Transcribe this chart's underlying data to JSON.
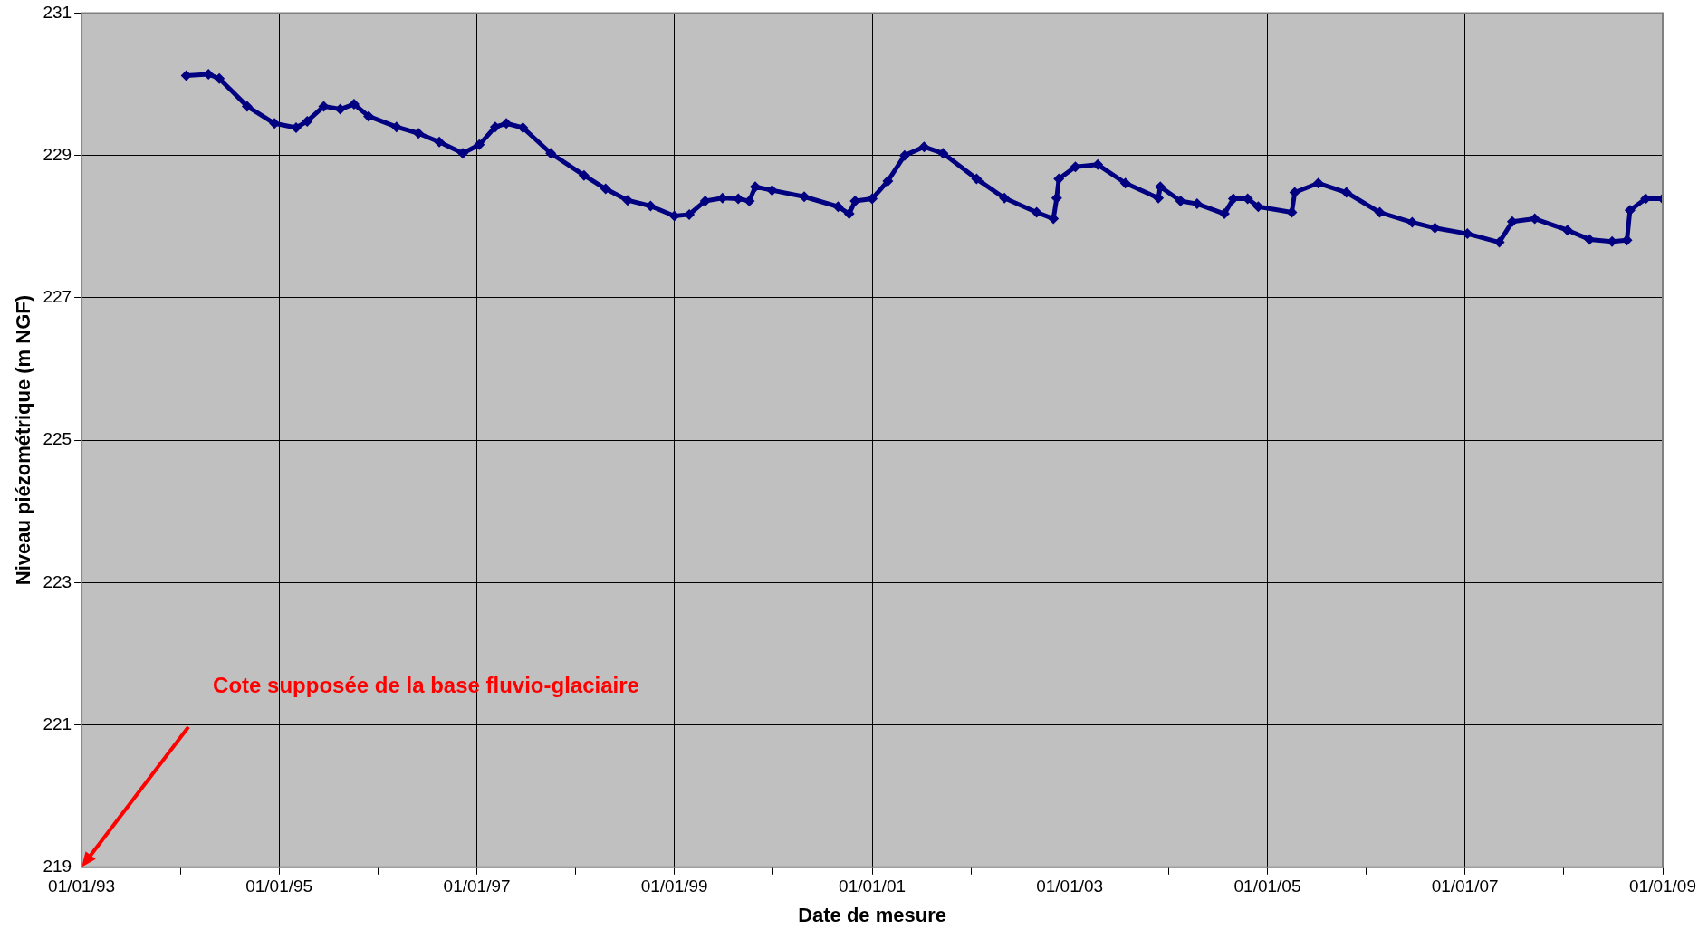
{
  "chart_data": {
    "type": "line",
    "xlabel": "Date de mesure",
    "ylabel": "Niveau piézométrique (m NGF)",
    "x": [
      "1994-01-23",
      "1994-04-15",
      "1994-05-25",
      "1994-09-05",
      "1994-12-15",
      "1995-03-05",
      "1995-04-15",
      "1995-06-15",
      "1995-08-15",
      "1995-10-05",
      "1995-11-28",
      "1996-03-10",
      "1996-05-30",
      "1996-08-15",
      "1996-11-10",
      "1997-01-10",
      "1997-03-10",
      "1997-04-20",
      "1997-06-20",
      "1997-10-01",
      "1998-02-01",
      "1998-04-22",
      "1998-07-12",
      "1998-10-05",
      "1999-01-01",
      "1999-02-25",
      "1999-04-25",
      "1999-06-28",
      "1999-08-25",
      "1999-10-05",
      "1999-10-27",
      "1999-12-28",
      "2000-04-25",
      "2000-08-28",
      "2000-10-08",
      "2000-10-30",
      "2001-01-01",
      "2001-02-28",
      "2001-05-01",
      "2001-07-12",
      "2001-09-20",
      "2002-01-22",
      "2002-05-05",
      "2002-09-01",
      "2002-11-02",
      "2002-11-14",
      "2002-11-22",
      "2003-01-22",
      "2003-04-15",
      "2003-07-26",
      "2003-11-25",
      "2003-12-02",
      "2004-02-15",
      "2004-04-16",
      "2004-07-26",
      "2004-08-28",
      "2004-10-20",
      "2004-11-28",
      "2005-04-01",
      "2005-04-12",
      "2005-07-08",
      "2005-10-20",
      "2006-02-20",
      "2006-06-20",
      "2006-09-12",
      "2007-01-10",
      "2007-05-08",
      "2007-06-25",
      "2007-09-16",
      "2008-01-15",
      "2008-04-05",
      "2008-06-28",
      "2008-08-22",
      "2008-09-02",
      "2008-10-30",
      "2009-01-01"
    ],
    "values": [
      230.12,
      230.14,
      230.08,
      229.69,
      229.45,
      229.39,
      229.48,
      229.69,
      229.65,
      229.72,
      229.55,
      229.4,
      229.31,
      229.19,
      229.03,
      229.15,
      229.4,
      229.45,
      229.39,
      229.03,
      228.72,
      228.53,
      228.37,
      228.29,
      228.15,
      228.17,
      228.36,
      228.4,
      228.39,
      228.36,
      228.56,
      228.51,
      228.42,
      228.28,
      228.18,
      228.36,
      228.39,
      228.64,
      229.0,
      229.12,
      229.03,
      228.67,
      228.4,
      228.2,
      228.11,
      228.4,
      228.67,
      228.84,
      228.87,
      228.61,
      228.4,
      228.56,
      228.36,
      228.32,
      228.18,
      228.39,
      228.39,
      228.28,
      228.2,
      228.48,
      228.61,
      228.48,
      228.2,
      228.06,
      227.98,
      227.9,
      227.78,
      228.07,
      228.11,
      227.95,
      227.82,
      227.79,
      227.81,
      228.23,
      228.39,
      228.39
    ],
    "color": "#000080",
    "marker": "diamond",
    "line_style": "solid",
    "grid": true,
    "legend": false,
    "xlim": [
      "1993-01-01",
      "2009-01-01"
    ],
    "xticks": [
      {
        "value": "1993-01-01",
        "label": "01/01/93"
      },
      {
        "value": "1994-01-01",
        "label": null
      },
      {
        "value": "1995-01-01",
        "label": "01/01/95"
      },
      {
        "value": "1996-01-01",
        "label": null
      },
      {
        "value": "1997-01-01",
        "label": "01/01/97"
      },
      {
        "value": "1998-01-01",
        "label": null
      },
      {
        "value": "1999-01-01",
        "label": "01/01/99"
      },
      {
        "value": "2000-01-01",
        "label": null
      },
      {
        "value": "2001-01-01",
        "label": "01/01/01"
      },
      {
        "value": "2002-01-01",
        "label": null
      },
      {
        "value": "2003-01-01",
        "label": "01/01/03"
      },
      {
        "value": "2004-01-01",
        "label": null
      },
      {
        "value": "2005-01-01",
        "label": "01/01/05"
      },
      {
        "value": "2006-01-01",
        "label": null
      },
      {
        "value": "2007-01-01",
        "label": "01/01/07"
      },
      {
        "value": "2008-01-01",
        "label": null
      },
      {
        "value": "2009-01-01",
        "label": "01/01/09"
      }
    ],
    "ylim": [
      219,
      231
    ],
    "yticks": [
      219,
      221,
      223,
      225,
      227,
      229,
      231
    ],
    "annotations": [
      "Cote supposée de la base fluvio-glaciaire"
    ]
  }
}
